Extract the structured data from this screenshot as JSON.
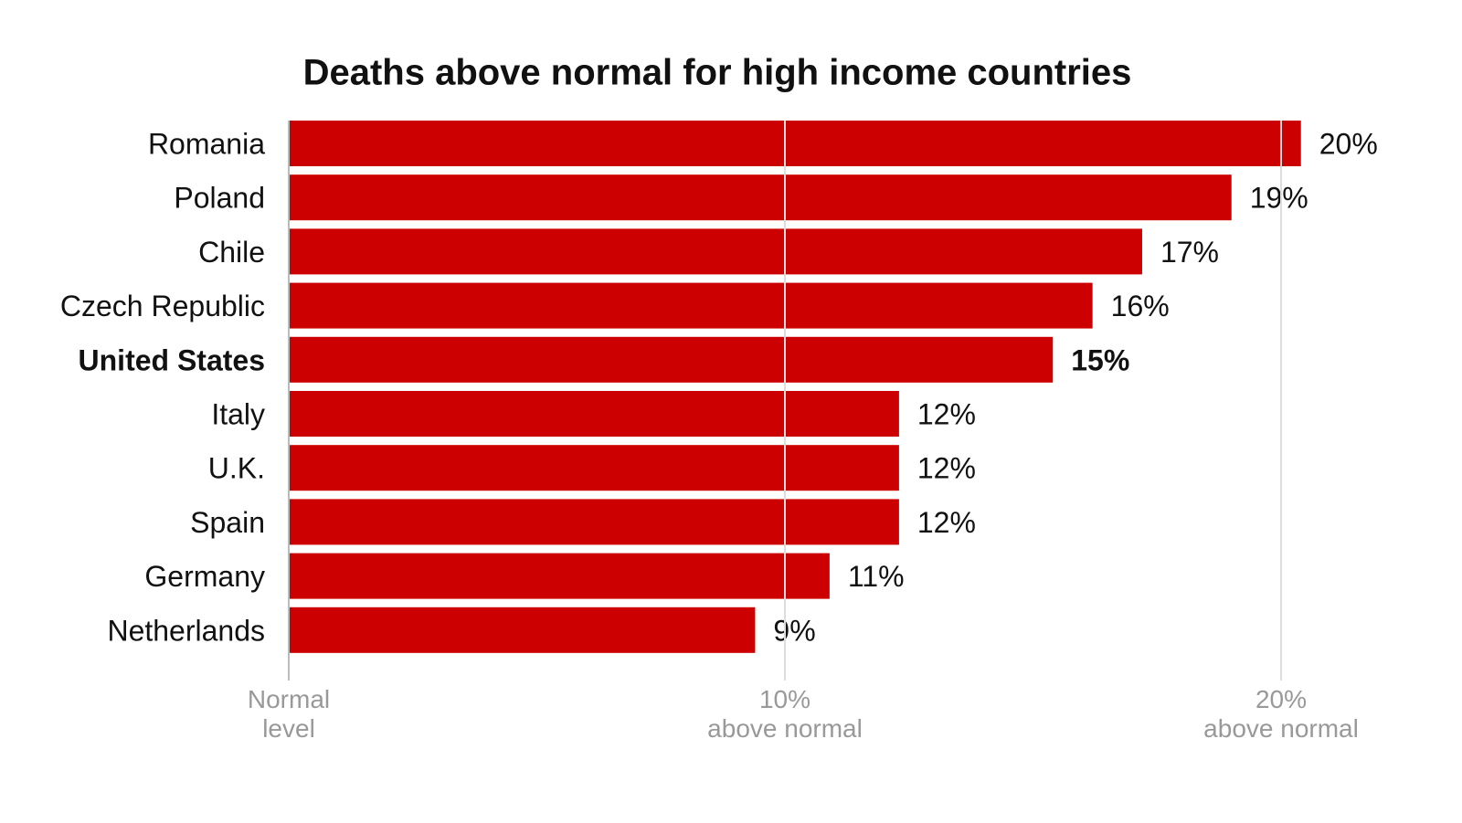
{
  "chart_data": {
    "type": "hbar",
    "title": "Deaths above normal for high income countries",
    "categories": [
      "Romania",
      "Poland",
      "Chile",
      "Czech Republic",
      "United States",
      "Italy",
      "U.K.",
      "Spain",
      "Germany",
      "Netherlands"
    ],
    "values": [
      20.4,
      19.0,
      17.2,
      16.2,
      15.4,
      12.3,
      12.3,
      12.3,
      10.9,
      9.4
    ],
    "value_labels": [
      "20%",
      "19%",
      "17%",
      "16%",
      "15%",
      "12%",
      "12%",
      "12%",
      "11%",
      "9%"
    ],
    "highlight_index": 4,
    "color": "#cc0000",
    "xlim": [
      0,
      22
    ],
    "xticks": [
      {
        "value": 0,
        "label": "Normal level"
      },
      {
        "value": 10,
        "label": "10% above normal"
      },
      {
        "value": 20,
        "label": "20% above normal"
      }
    ],
    "grid": true
  }
}
